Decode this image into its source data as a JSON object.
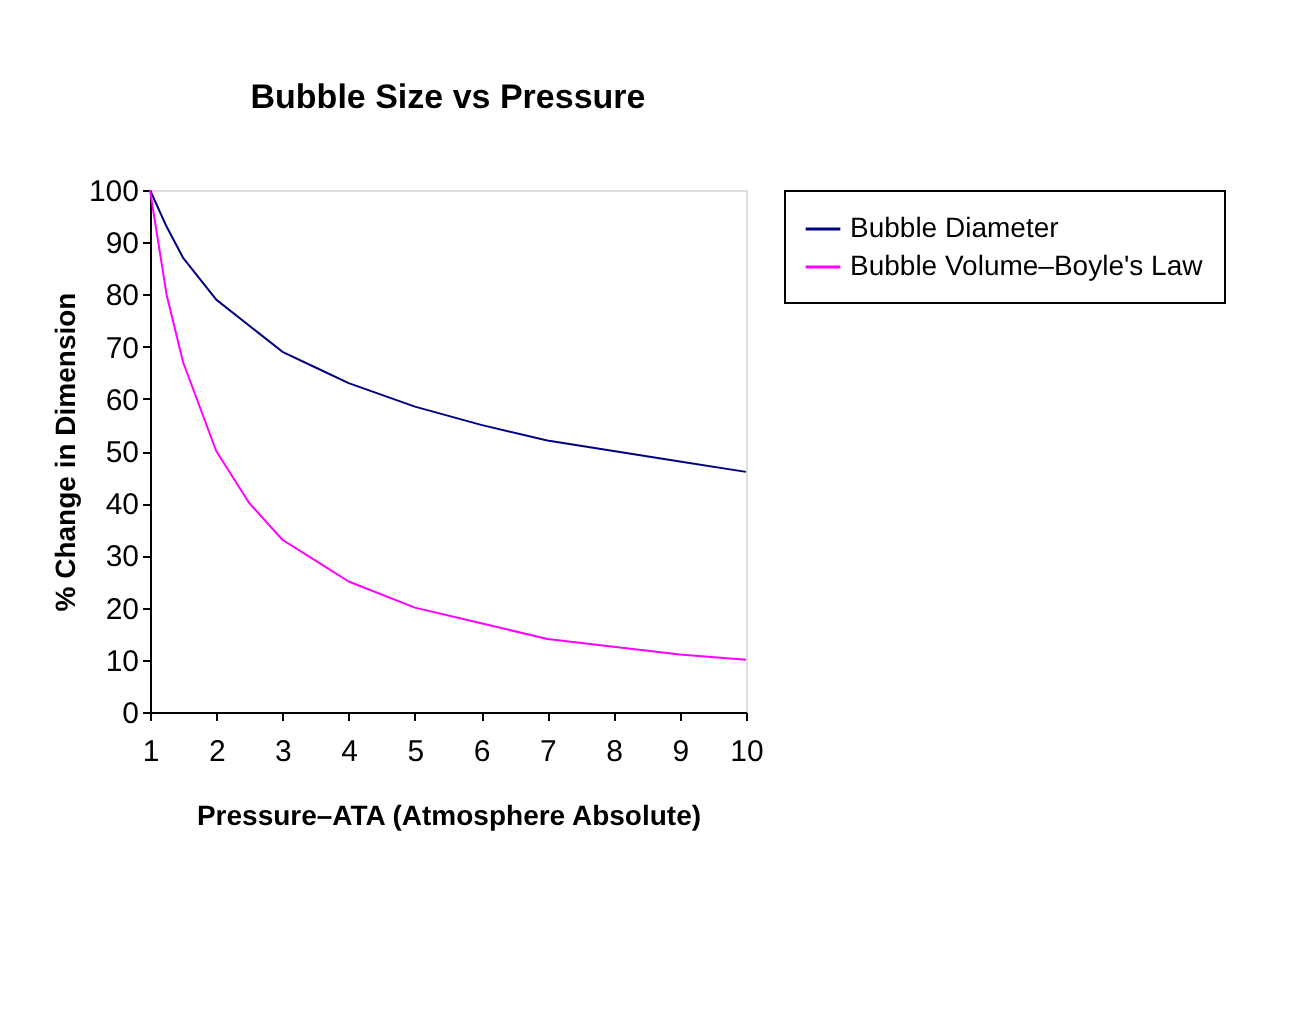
{
  "chart_data": {
    "type": "line",
    "title": "Bubble Size vs Pressure",
    "xlabel": "Pressure–ATA (Atmosphere Absolute)",
    "ylabel": "% Change in Dimension",
    "x": [
      1,
      1.25,
      1.5,
      2,
      2.5,
      3,
      3.5,
      4,
      5,
      6,
      7,
      8,
      9,
      10
    ],
    "series": [
      {
        "name": "Bubble Diameter",
        "color": "#000080",
        "values": [
          100,
          93,
          87,
          79,
          74,
          69,
          66,
          63,
          58.5,
          55,
          52,
          50,
          48,
          46
        ]
      },
      {
        "name": "Bubble Volume–Boyle's Law",
        "color": "#ff00ff",
        "values": [
          100,
          80,
          67,
          50,
          40,
          33,
          29,
          25,
          20,
          17,
          14,
          12.5,
          11,
          10
        ]
      }
    ],
    "xlim": [
      1,
      10
    ],
    "xticks": [
      1,
      2,
      3,
      4,
      5,
      6,
      7,
      8,
      9,
      10
    ],
    "ylim": [
      0,
      100
    ],
    "yticks": [
      0,
      10,
      20,
      30,
      40,
      50,
      60,
      70,
      80,
      90,
      100
    ],
    "grid": false,
    "legend": "right",
    "marker": "none",
    "line_style": "solid"
  }
}
